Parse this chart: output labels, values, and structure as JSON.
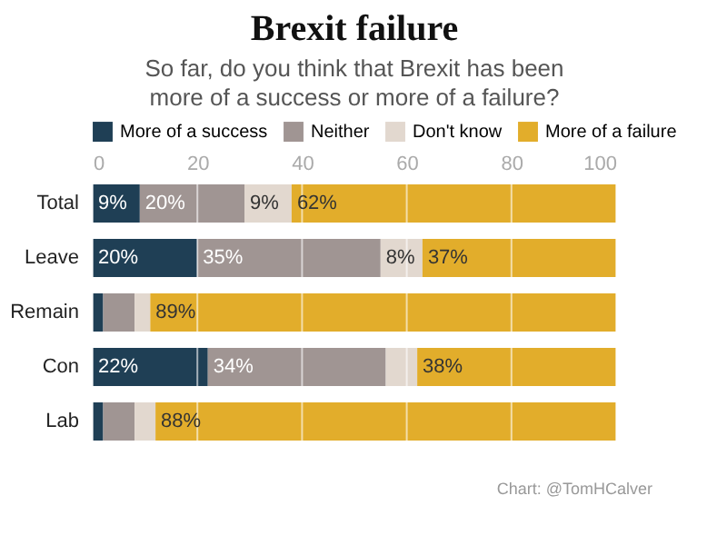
{
  "chart_data": {
    "type": "bar",
    "orientation": "horizontal",
    "stacked": true,
    "title": "Brexit failure",
    "subtitle": "So far, do you think that Brexit has been more of a success or more of a failure?",
    "categories": [
      "Total",
      "Leave",
      "Remain",
      "Con",
      "Lab"
    ],
    "series": [
      {
        "name": "More of a success",
        "color": "#1f3f55",
        "values": [
          9,
          20,
          2,
          22,
          2
        ],
        "value_labels": [
          "9%",
          "20%",
          null,
          "22%",
          null
        ]
      },
      {
        "name": "Neither",
        "color": "#a09593",
        "values": [
          20,
          35,
          6,
          34,
          6
        ],
        "value_labels": [
          "20%",
          "35%",
          null,
          "34%",
          null
        ]
      },
      {
        "name": "Don't know",
        "color": "#e2d8cf",
        "values": [
          9,
          8,
          3,
          6,
          4
        ],
        "value_labels": [
          "9%",
          "8%",
          null,
          null,
          null
        ]
      },
      {
        "name": "More of a failure",
        "color": "#e2ad2b",
        "values": [
          62,
          37,
          89,
          38,
          88
        ],
        "value_labels": [
          "62%",
          "37%",
          "89%",
          "38%",
          "88%"
        ]
      }
    ],
    "xlim": [
      0,
      100
    ],
    "xticks": [
      0,
      20,
      40,
      60,
      80,
      100
    ],
    "grid": "x",
    "legend": "top",
    "annotations": [
      "Chart: @TomHCalver"
    ]
  }
}
